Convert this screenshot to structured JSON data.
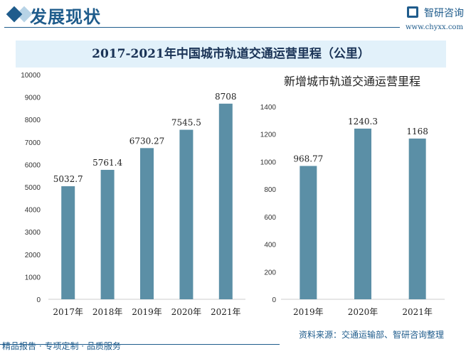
{
  "header": {
    "title": "发展现状",
    "logo_text": "智研咨询",
    "logo_url": "www.chyxx.com"
  },
  "colors": {
    "bar": "#5b8fa6",
    "accent": "#1f5c8c",
    "band": "#e2f1fa"
  },
  "footer": {
    "left": "精品报告 · 专项定制 · 品质服务",
    "source": "资料来源：交通运输部、智研咨询整理"
  },
  "chart_data": [
    {
      "type": "bar",
      "title": "2017-2021年中国城市轨道交通运营里程（公里）",
      "categories": [
        "2017年",
        "2018年",
        "2019年",
        "2020年",
        "2021年"
      ],
      "values": [
        5032.7,
        5761.4,
        6730.27,
        7545.5,
        8708
      ],
      "labels": [
        "5032.7",
        "5761.4",
        "6730.27",
        "7545.5",
        "8708"
      ],
      "ylim": [
        0,
        10000
      ],
      "yticks": [
        0,
        1000,
        2000,
        3000,
        4000,
        5000,
        6000,
        7000,
        8000,
        9000,
        10000
      ],
      "grid": false
    },
    {
      "type": "bar",
      "title": "新增城市轨道交通运营里程",
      "categories": [
        "2019年",
        "2020年",
        "2021年"
      ],
      "values": [
        968.77,
        1240.3,
        1168
      ],
      "labels": [
        "968.77",
        "1240.3",
        "1168"
      ],
      "ylim": [
        0,
        1400
      ],
      "yticks": [
        0,
        200,
        400,
        600,
        800,
        1000,
        1200,
        1400
      ],
      "grid": false
    }
  ]
}
